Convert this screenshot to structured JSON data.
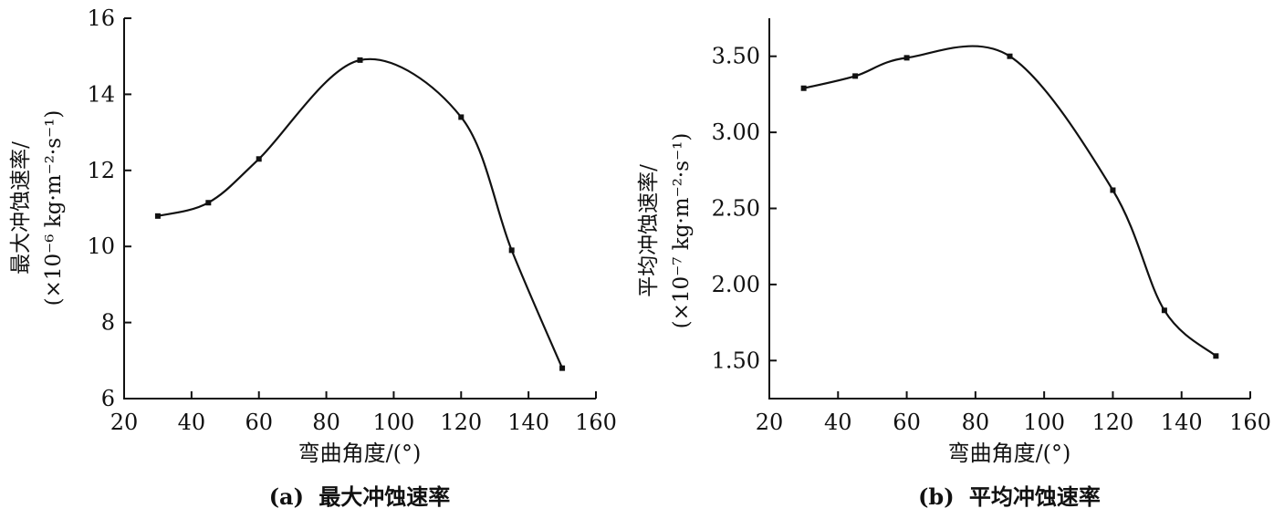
{
  "chart_data": [
    {
      "type": "line",
      "caption_prefix": "(a)",
      "caption_text": "最大冲蚀速率",
      "xlabel": "弯曲角度/(°)",
      "ylabel_line1": "最大冲蚀速率/",
      "ylabel_line2": "(×10⁻⁶ kg·m⁻²·s⁻¹)",
      "xlim": [
        20,
        160
      ],
      "ylim": [
        6,
        16
      ],
      "xticks": [
        "20",
        "40",
        "60",
        "80",
        "100",
        "120",
        "140",
        "160"
      ],
      "yticks": [
        "6",
        "8",
        "10",
        "12",
        "14",
        "16"
      ],
      "x": [
        30,
        45,
        60,
        90,
        120,
        135,
        150
      ],
      "y": [
        10.8,
        11.15,
        12.3,
        14.9,
        13.4,
        9.9,
        6.8
      ]
    },
    {
      "type": "line",
      "caption_prefix": "(b)",
      "caption_text": "平均冲蚀速率",
      "xlabel": "弯曲角度/(°)",
      "ylabel_line1": "平均冲蚀速率/",
      "ylabel_line2": "(×10⁻⁷ kg·m⁻²·s⁻¹)",
      "xlim": [
        20,
        160
      ],
      "ylim": [
        1.25,
        3.75
      ],
      "xticks": [
        "20",
        "40",
        "60",
        "80",
        "100",
        "120",
        "140",
        "160"
      ],
      "yticks": [
        "1.50",
        "2.00",
        "2.50",
        "3.00",
        "3.50"
      ],
      "x": [
        30,
        45,
        60,
        90,
        120,
        135,
        150
      ],
      "y": [
        3.29,
        3.37,
        3.49,
        3.5,
        2.62,
        1.83,
        1.53
      ]
    }
  ]
}
